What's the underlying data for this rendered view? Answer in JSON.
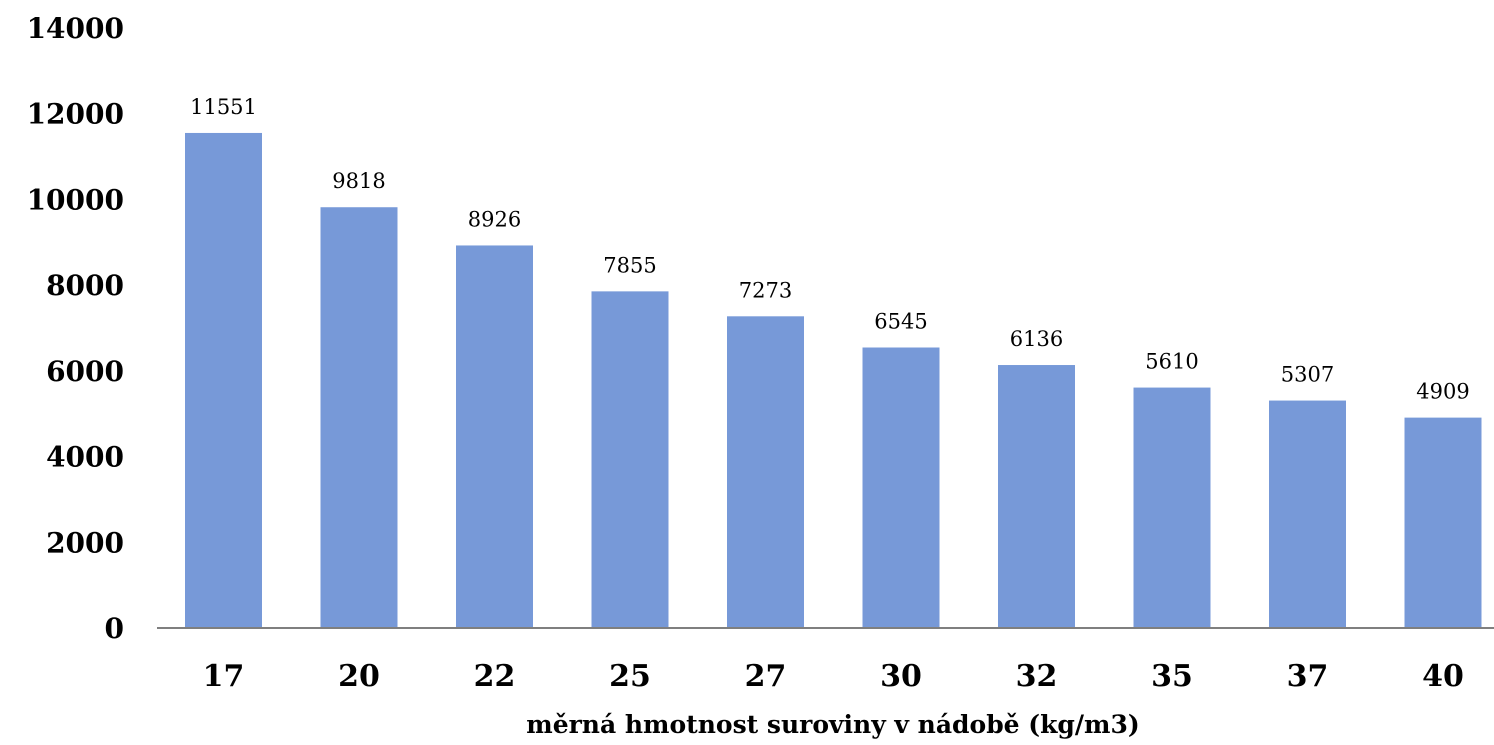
{
  "chart_data": {
    "type": "bar",
    "categories": [
      "17",
      "20",
      "22",
      "25",
      "27",
      "30",
      "32",
      "35",
      "37",
      "40"
    ],
    "values": [
      11551,
      9818,
      8926,
      7855,
      7273,
      6545,
      6136,
      5610,
      5307,
      4909
    ],
    "data_labels": [
      "11551",
      "9818",
      "8926",
      "7855",
      "7273",
      "6545",
      "6136",
      "5610",
      "5307",
      "4909"
    ],
    "y_ticks": [
      "0",
      "2000",
      "4000",
      "6000",
      "8000",
      "10000",
      "12000",
      "14000"
    ],
    "xlabel": "měrná hmotnost suroviny v nádobě (kg/m3)",
    "ylim": [
      0,
      14000
    ],
    "grid": false,
    "legend": "none",
    "bar_color": "#7799d8",
    "axis_color": "#7f7f7f"
  }
}
